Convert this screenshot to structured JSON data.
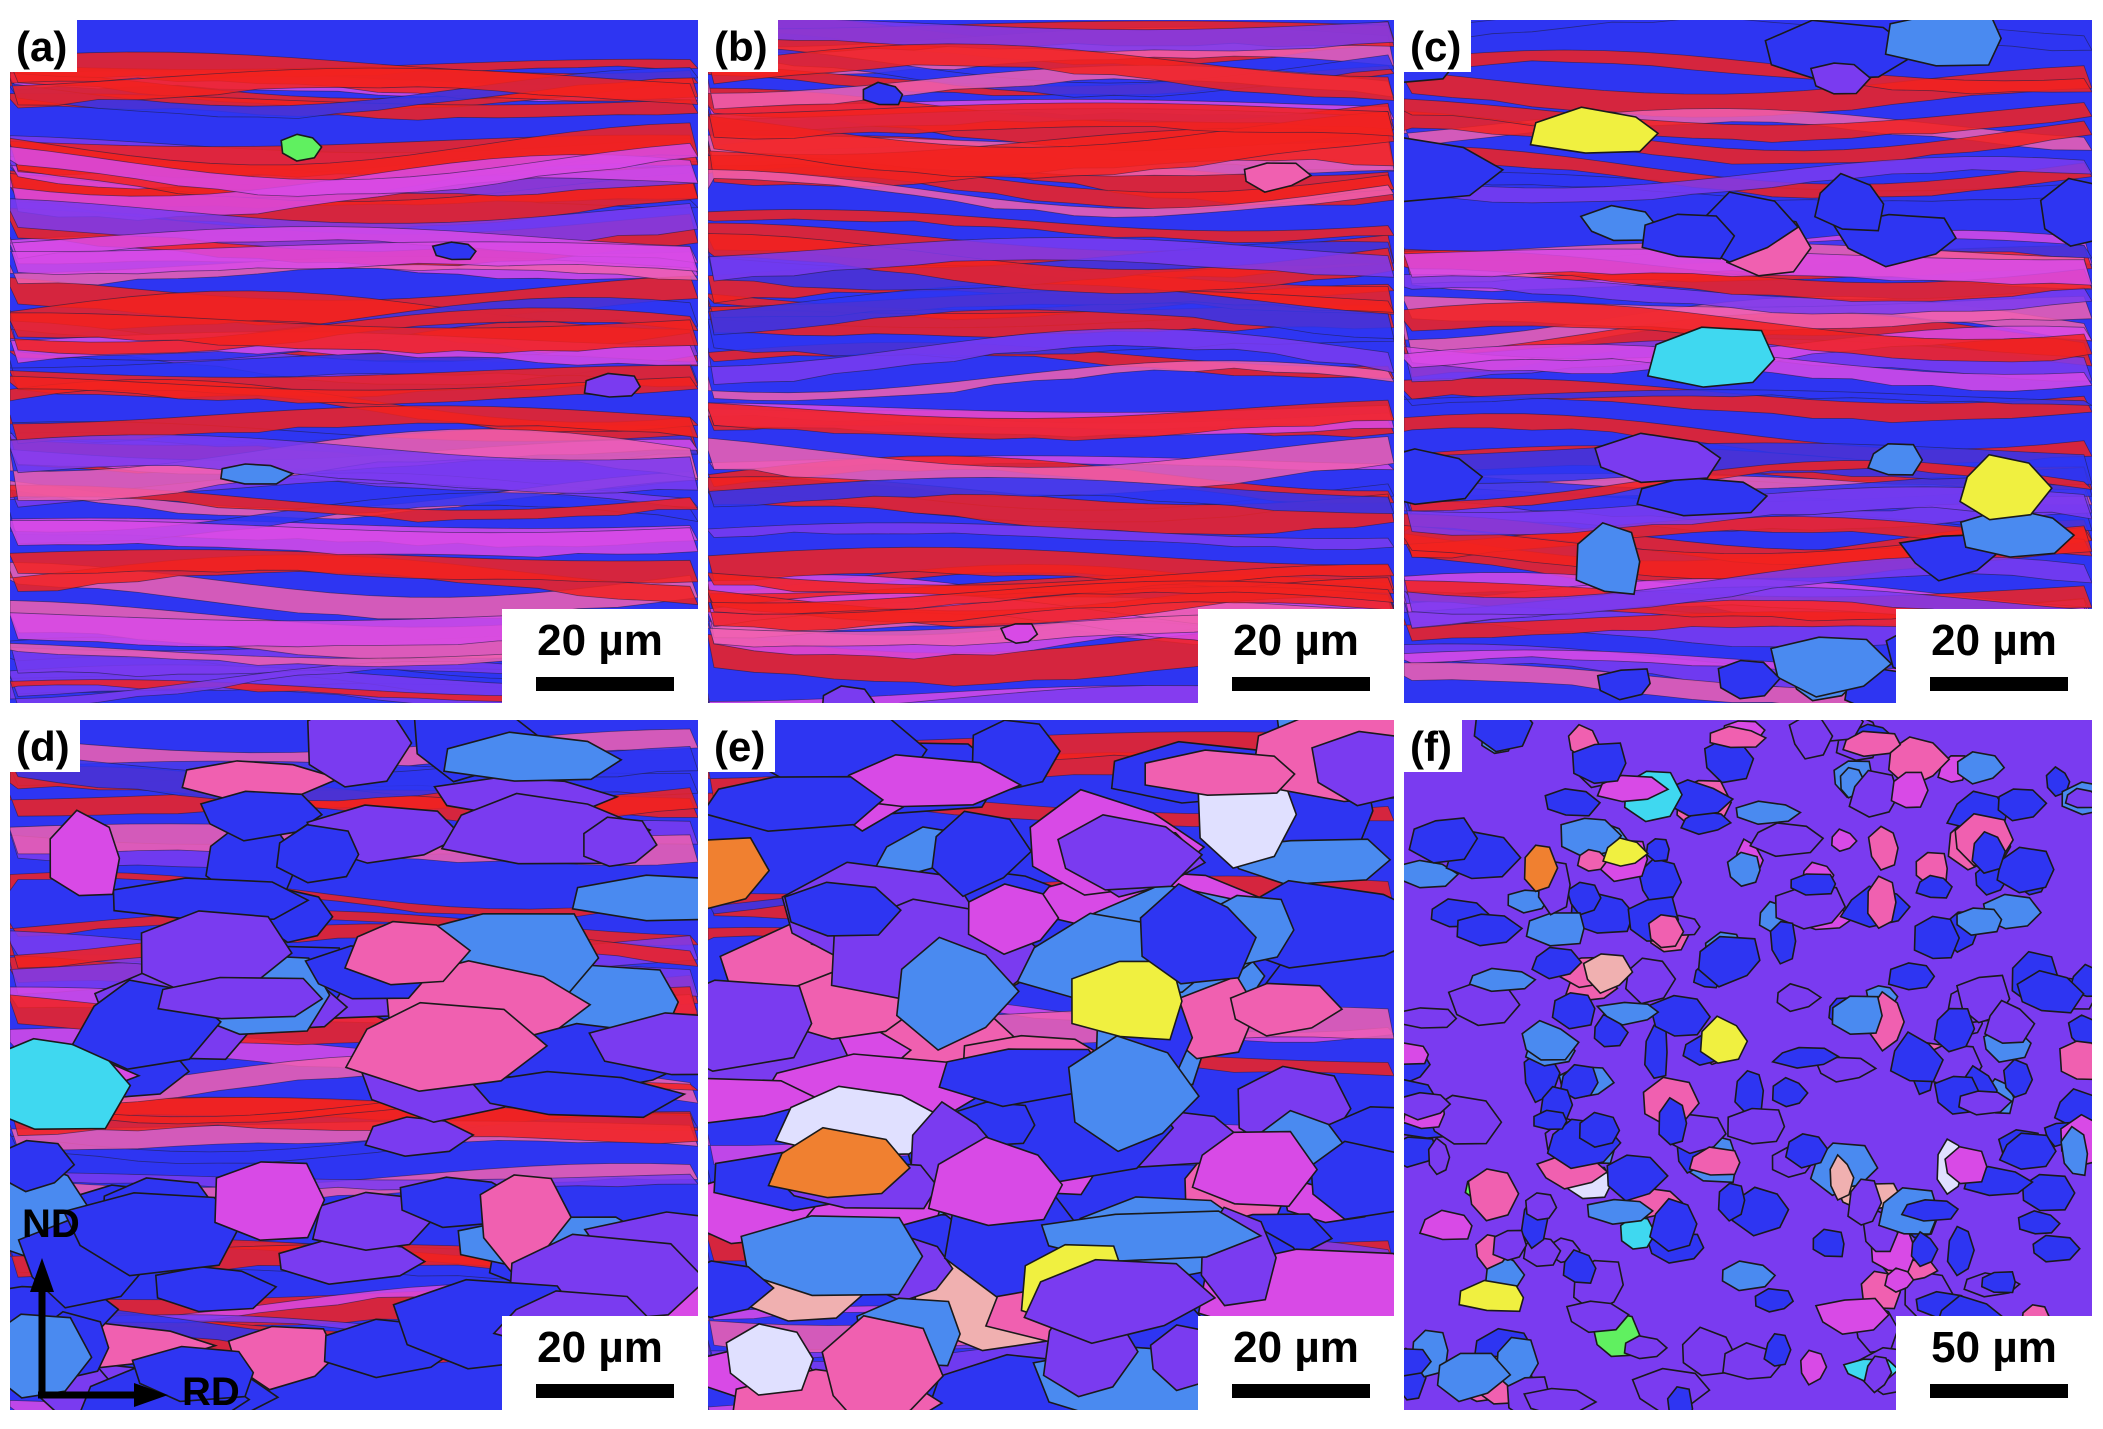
{
  "panels": [
    {
      "label": "(a)",
      "scale": "20 µm",
      "scheme": "deformed"
    },
    {
      "label": "(b)",
      "scale": "20 µm",
      "scheme": "deformed"
    },
    {
      "label": "(c)",
      "scale": "20 µm",
      "scheme": "partial"
    },
    {
      "label": "(d)",
      "scale": "20 µm",
      "scheme": "mixed"
    },
    {
      "label": "(e)",
      "scale": "20 µm",
      "scheme": "mostly"
    },
    {
      "label": "(f)",
      "scale": "50 µm",
      "scheme": "recrystallized"
    }
  ],
  "axes": {
    "nd": "ND",
    "rd": "RD"
  },
  "colors": {
    "red": "#f2221e",
    "blue": "#2e35f2",
    "magenta": "#d84ae6",
    "violet": "#7a3bf0",
    "lightblue": "#4a8af0",
    "cyan": "#3fd8f0",
    "pink": "#f060b0",
    "grain_boundary": "#1a1a1a"
  }
}
